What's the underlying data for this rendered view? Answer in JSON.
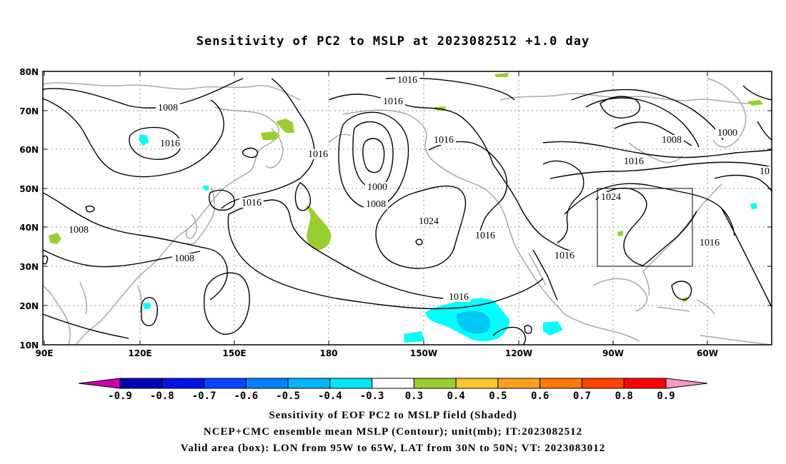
{
  "title": "Sensitivity of PC2 to MSLP at 2023082512 +1.0 day",
  "map": {
    "lon_labels": [
      "90E",
      "120E",
      "150E",
      "180",
      "150W",
      "120W",
      "90W",
      "60W"
    ],
    "lat_labels": [
      "80N",
      "70N",
      "60N",
      "50N",
      "40N",
      "30N",
      "20N",
      "10N"
    ],
    "contour_labels": [
      {
        "id": "c1016-top",
        "text": "1016"
      },
      {
        "id": "c1016-b",
        "text": "1016"
      },
      {
        "id": "c1008-a",
        "text": "1008"
      },
      {
        "id": "c1016-c",
        "text": "1016"
      },
      {
        "id": "c1016-d",
        "text": "1016"
      },
      {
        "id": "c1000-a",
        "text": "1000"
      },
      {
        "id": "c1008-b",
        "text": "1008"
      },
      {
        "id": "c1024-a",
        "text": "1024"
      },
      {
        "id": "c1016-e",
        "text": "1016"
      },
      {
        "id": "c1016-f",
        "text": "1016"
      },
      {
        "id": "c1016-g",
        "text": "1016"
      },
      {
        "id": "c1008-c",
        "text": "1008"
      },
      {
        "id": "c1008-d",
        "text": "1008"
      },
      {
        "id": "c1016-h",
        "text": "1016"
      },
      {
        "id": "c1016-i",
        "text": "1016"
      },
      {
        "id": "c1024-b",
        "text": "1024"
      },
      {
        "id": "c1008-e",
        "text": "1008"
      },
      {
        "id": "c1000-b",
        "text": "1000"
      },
      {
        "id": "c1016-j",
        "text": "1016"
      },
      {
        "id": "c1016-k",
        "text": "1016"
      },
      {
        "id": "c10-edge",
        "text": "10"
      }
    ],
    "valid_box": {
      "lon_from": "95W",
      "lon_to": "65W",
      "lat_from": "30N",
      "lat_to": "50N"
    },
    "colors": {
      "coast": "#a8a8a8",
      "contour": "#000000",
      "positive": "#9acd32",
      "negative": "#00ffff",
      "negative_dark": "#00c8f0"
    }
  },
  "colorbar": {
    "labels": [
      "-0.9",
      "-0.8",
      "-0.7",
      "-0.6",
      "-0.5",
      "-0.4",
      "-0.3",
      "0.3",
      "0.4",
      "0.5",
      "0.6",
      "0.7",
      "0.8",
      "0.9"
    ],
    "colors": [
      "#c800b4",
      "#0000b4",
      "#0014e6",
      "#0046ff",
      "#0082ff",
      "#00b4ff",
      "#00e6ff",
      "#ffffff",
      "#9acd32",
      "#ffc832",
      "#ffa01e",
      "#ff780a",
      "#ff4600",
      "#ff0000",
      "#ff96c8"
    ]
  },
  "captions": [
    "Sensitivity of EOF PC2 to MSLP field (Shaded)",
    "NCEP+CMC ensemble mean MSLP (Contour); unit(mb); IT:2023082512",
    "Valid area (box): LON from 95W to 65W, LAT from 30N to 50N; VT: 2023083012"
  ]
}
